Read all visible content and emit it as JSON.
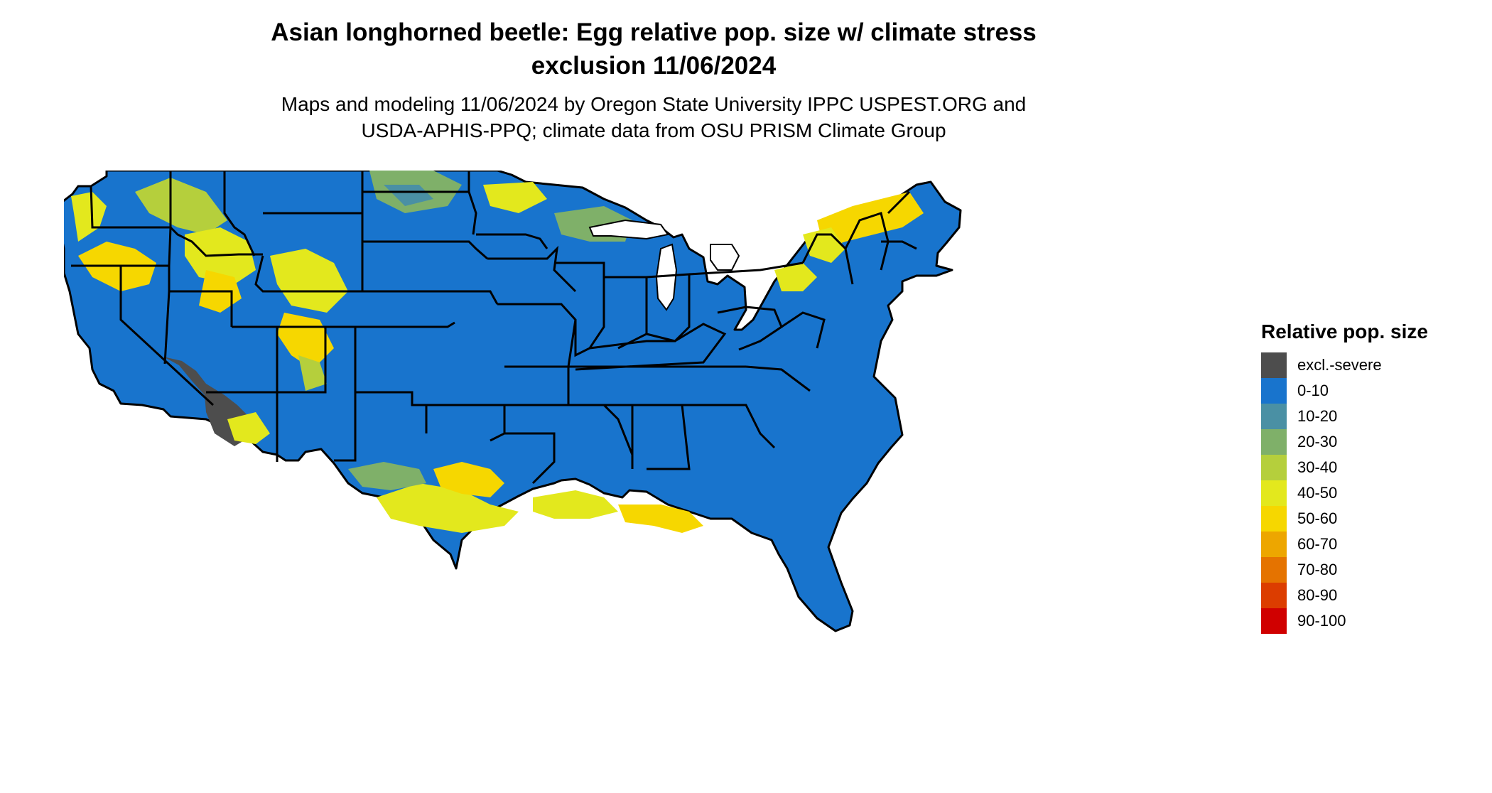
{
  "title": {
    "line1": "Asian longhorned beetle: Egg relative pop. size w/ climate stress",
    "line2": "exclusion 11/06/2024"
  },
  "subtitle": {
    "line1": "Maps and modeling 11/06/2024 by Oregon State University IPPC USPEST.ORG and",
    "line2": "USDA-APHIS-PPQ; climate data from OSU PRISM Climate Group"
  },
  "legend": {
    "title": "Relative pop. size",
    "items": [
      {
        "label": "excl.-severe",
        "color": "#4d4d4d"
      },
      {
        "label": "0-10",
        "color": "#1874cd"
      },
      {
        "label": "10-20",
        "color": "#4a90a4"
      },
      {
        "label": "20-30",
        "color": "#7fb069"
      },
      {
        "label": "30-40",
        "color": "#b5cf3c"
      },
      {
        "label": "40-50",
        "color": "#e3e81d"
      },
      {
        "label": "50-60",
        "color": "#f6d700"
      },
      {
        "label": "60-70",
        "color": "#eda600"
      },
      {
        "label": "70-80",
        "color": "#e57300"
      },
      {
        "label": "80-90",
        "color": "#dc3d00"
      },
      {
        "label": "90-100",
        "color": "#d00000"
      }
    ]
  },
  "map": {
    "base_color": "#1874cd",
    "border_color": "#000000"
  }
}
